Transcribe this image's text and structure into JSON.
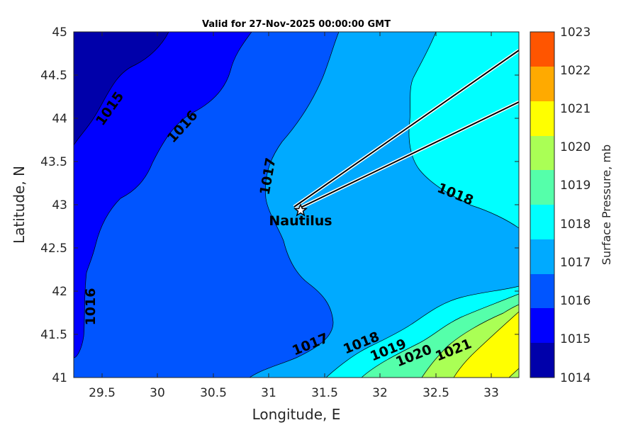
{
  "title": "Valid for 27-Nov-2025 00:00:00 GMT",
  "xlabel": "Longitude, E",
  "ylabel": "Latitude, N",
  "colorbar_label": "Surface Pressure, mb",
  "x_ticks": [
    "29.5",
    "30",
    "30.5",
    "31",
    "31.5",
    "32",
    "32.5",
    "33"
  ],
  "y_ticks": [
    "45",
    "44.5",
    "44",
    "43.5",
    "43",
    "42.5",
    "42",
    "41.5",
    "41"
  ],
  "colorbar_ticks": [
    "1023",
    "1022",
    "1021",
    "1020",
    "1019",
    "1018",
    "1017",
    "1016",
    "1015",
    "1014"
  ],
  "contour_labels": [
    "1015",
    "1016",
    "1017",
    "1016",
    "1017",
    "1018",
    "1018",
    "1019",
    "1020",
    "1021"
  ],
  "marker": {
    "label": "Nautilus",
    "icon": "star-icon"
  },
  "colors": {
    "1014-1015": "#0000aa",
    "1015-1016": "#0000ff",
    "1016-1017": "#0055ff",
    "1017-1018": "#00aaff",
    "1018-1019": "#00ffff",
    "1019-1020": "#55ffaa",
    "1020-1021": "#aaff55",
    "1021-1022": "#ffff00",
    "1022-1023": "#ffaa00",
    "1023-1024": "#ff5500"
  },
  "chart_data": {
    "type": "contour",
    "xlim": [
      29.25,
      33.25
    ],
    "ylim": [
      41,
      45
    ],
    "color_range": [
      1014,
      1023
    ],
    "levels": [
      1014,
      1015,
      1016,
      1017,
      1018,
      1019,
      1020,
      1021,
      1022,
      1023
    ],
    "marker_position": {
      "lon": 31.25,
      "lat": 42.97
    }
  }
}
